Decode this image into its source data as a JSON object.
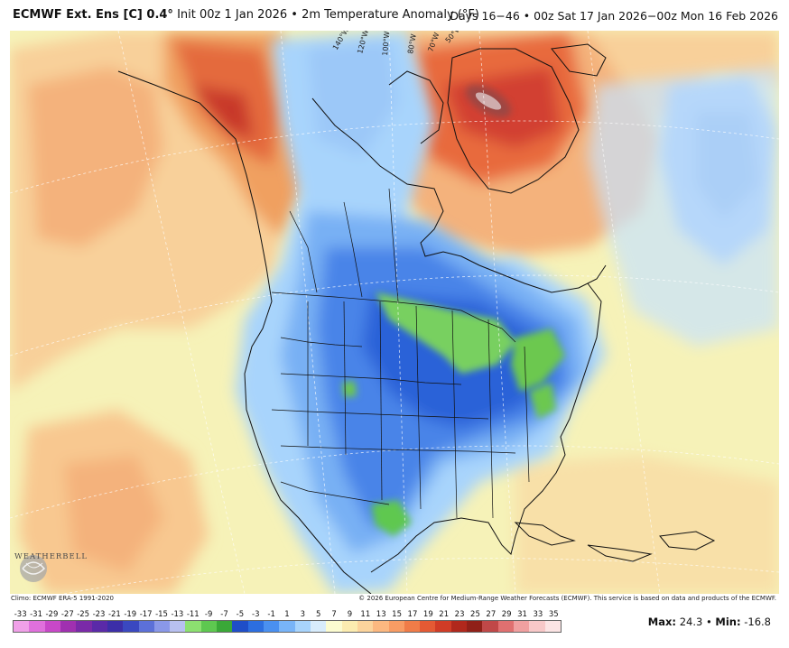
{
  "header": {
    "model": "ECMWF Ext. Ens [C] 0.4°",
    "init": "Init 00z 1 Jan 2026",
    "field": "2m Temperature Anomaly (°F)",
    "period": "Days 16−46 • 00z Sat 17 Jan 2026−00z Mon 16 Feb 2026"
  },
  "footer": {
    "climo": "Climo: ECMWF ERA-5 1991-2020",
    "copyright": "© 2026 European Centre for Medium-Range Weather Forecasts (ECMWF). This service is based on data and products of the ECMWF.",
    "max_label": "Max:",
    "max_value": "24.3",
    "min_label": "Min:",
    "min_value": "-16.8",
    "separator": "•"
  },
  "logo_text": "WEATHERBELL",
  "colorbar": {
    "labels": [
      "-33",
      "-31",
      "-29",
      "-27",
      "-25",
      "-23",
      "-21",
      "-19",
      "-17",
      "-15",
      "-13",
      "-11",
      "-9",
      "-7",
      "-5",
      "-3",
      "-1",
      "1",
      "3",
      "5",
      "7",
      "9",
      "11",
      "13",
      "15",
      "17",
      "19",
      "21",
      "23",
      "25",
      "27",
      "29",
      "31",
      "33",
      "35"
    ],
    "colors": [
      "#f0a0e8",
      "#e070dc",
      "#c848c8",
      "#a030b0",
      "#7a2aa8",
      "#5a2aa8",
      "#3c2ea8",
      "#3a48c0",
      "#5c70d8",
      "#8a98e8",
      "#b8c0f0",
      "#8ce070",
      "#5ec850",
      "#3aa838",
      "#1f4ec8",
      "#2c6ee0",
      "#4a90f0",
      "#78b4f8",
      "#a8d4fc",
      "#d8ecfc",
      "#fcfcd0",
      "#fcecb0",
      "#fcd49c",
      "#fcb880",
      "#f89c64",
      "#f07c48",
      "#e45a34",
      "#d03c26",
      "#b0281c",
      "#902018",
      "#c04848",
      "#e07070",
      "#f0a0a0",
      "#f8c8c8",
      "#fce4e4"
    ]
  },
  "map_labels": [
    "140°W",
    "120°W",
    "100°W",
    "80°W",
    "70°W",
    "50°W"
  ]
}
